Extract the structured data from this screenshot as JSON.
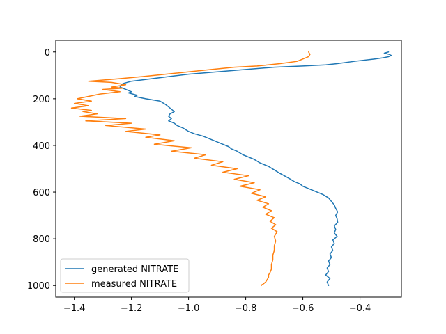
{
  "chart_data": {
    "type": "line",
    "title": "",
    "xlabel": "",
    "ylabel": "",
    "xlim": [
      -1.465,
      -0.255
    ],
    "ylim": [
      1050,
      -50
    ],
    "y_inverted": true,
    "grid": false,
    "legend_position": "lower-left",
    "xticks": [
      -1.4,
      -1.2,
      -1.0,
      -0.8,
      -0.6,
      -0.4
    ],
    "xtick_labels": [
      "−1.4",
      "−1.2",
      "−1.0",
      "−0.8",
      "−0.6",
      "−0.4"
    ],
    "yticks": [
      0,
      200,
      400,
      600,
      800,
      1000
    ],
    "ytick_labels": [
      "0",
      "200",
      "400",
      "600",
      "800",
      "1000"
    ],
    "series": [
      {
        "name": "generated NITRATE",
        "color": "#1f77b4",
        "x": [
          -0.3,
          -0.315,
          -0.298,
          -0.29,
          -0.3,
          -0.32,
          -0.35,
          -0.42,
          -0.48,
          -0.52,
          -0.6,
          -0.7,
          -0.8,
          -0.9,
          -1.0,
          -1.1,
          -1.2,
          -1.23,
          -1.24,
          -1.22,
          -1.2,
          -1.21,
          -1.18,
          -1.19,
          -1.15,
          -1.1,
          -1.08,
          -1.07,
          -1.06,
          -1.05,
          -1.065,
          -1.07,
          -1.06,
          -1.07,
          -1.05,
          -1.04,
          -1.02,
          -1.0,
          -0.98,
          -0.95,
          -0.92,
          -0.9,
          -0.88,
          -0.86,
          -0.85,
          -0.83,
          -0.81,
          -0.79,
          -0.77,
          -0.75,
          -0.72,
          -0.7,
          -0.68,
          -0.65,
          -0.63,
          -0.61,
          -0.6,
          -0.57,
          -0.55,
          -0.53,
          -0.51,
          -0.5,
          -0.49,
          -0.485,
          -0.478,
          -0.485,
          -0.48,
          -0.478,
          -0.49,
          -0.485,
          -0.49,
          -0.48,
          -0.495,
          -0.49,
          -0.5,
          -0.495,
          -0.505,
          -0.5,
          -0.51,
          -0.505,
          -0.515,
          -0.51,
          -0.52,
          -0.505,
          -0.515,
          -0.51
        ],
        "y": [
          0,
          5,
          10,
          15,
          20,
          25,
          30,
          40,
          50,
          55,
          60,
          65,
          75,
          85,
          95,
          110,
          125,
          135,
          150,
          160,
          170,
          175,
          185,
          190,
          200,
          210,
          225,
          235,
          245,
          255,
          265,
          275,
          285,
          295,
          305,
          315,
          325,
          340,
          350,
          360,
          375,
          385,
          395,
          405,
          415,
          425,
          440,
          450,
          460,
          475,
          490,
          505,
          520,
          540,
          555,
          565,
          575,
          590,
          600,
          610,
          625,
          640,
          655,
          670,
          685,
          700,
          715,
          730,
          745,
          760,
          775,
          790,
          805,
          820,
          835,
          850,
          865,
          880,
          895,
          910,
          925,
          940,
          955,
          970,
          985,
          1000
        ]
      },
      {
        "name": "measured NITRATE",
        "color": "#ff7f0e",
        "x": [
          -0.58,
          -0.575,
          -0.58,
          -0.6,
          -0.62,
          -0.68,
          -0.76,
          -0.84,
          -0.92,
          -1.0,
          -1.08,
          -1.16,
          -1.25,
          -1.35,
          -1.27,
          -1.22,
          -1.27,
          -1.23,
          -1.3,
          -1.24,
          -1.31,
          -1.35,
          -1.39,
          -1.34,
          -1.4,
          -1.35,
          -1.41,
          -1.34,
          -1.37,
          -1.32,
          -1.38,
          -1.22,
          -1.36,
          -1.2,
          -1.29,
          -1.15,
          -1.22,
          -1.1,
          -1.15,
          -1.05,
          -1.12,
          -0.99,
          -1.06,
          -0.94,
          -0.98,
          -0.88,
          -0.92,
          -0.83,
          -0.88,
          -0.79,
          -0.84,
          -0.77,
          -0.82,
          -0.75,
          -0.78,
          -0.73,
          -0.76,
          -0.72,
          -0.74,
          -0.71,
          -0.73,
          -0.7,
          -0.715,
          -0.695,
          -0.71,
          -0.69,
          -0.7,
          -0.695,
          -0.7,
          -0.7,
          -0.705,
          -0.705,
          -0.71,
          -0.71,
          -0.715,
          -0.72,
          -0.72,
          -0.725,
          -0.73,
          -0.735,
          -0.74,
          -0.745,
          -0.745
        ],
        "y": [
          0,
          10,
          20,
          30,
          40,
          50,
          60,
          65,
          75,
          85,
          95,
          105,
          115,
          125,
          130,
          140,
          150,
          155,
          160,
          170,
          180,
          190,
          200,
          210,
          220,
          230,
          240,
          250,
          255,
          265,
          275,
          285,
          295,
          305,
          315,
          330,
          340,
          355,
          365,
          380,
          395,
          410,
          425,
          440,
          455,
          470,
          485,
          500,
          515,
          530,
          545,
          560,
          575,
          590,
          605,
          620,
          635,
          650,
          665,
          680,
          695,
          710,
          725,
          740,
          755,
          770,
          790,
          810,
          830,
          850,
          870,
          890,
          910,
          930,
          945,
          955,
          965,
          975,
          985,
          990,
          995,
          998,
          1000
        ]
      }
    ]
  }
}
